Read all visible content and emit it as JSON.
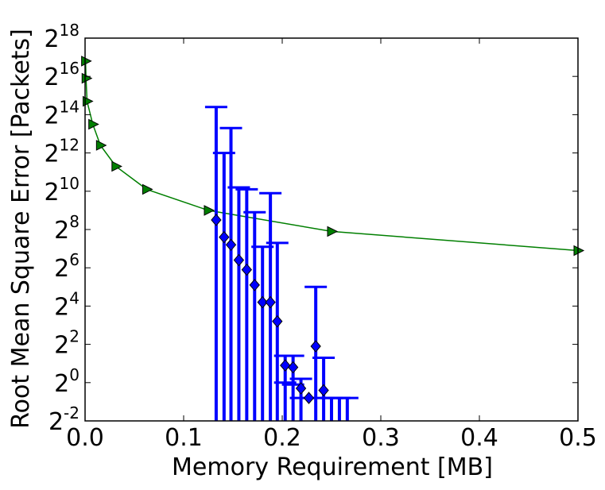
{
  "chart_data": {
    "type": "scatter",
    "title": "",
    "xlabel": "Memory Requirement [MB]",
    "ylabel": "Root Mean Square Error [Packets]",
    "xlim": [
      0.0,
      0.5
    ],
    "ylim_log2": [
      -2,
      18
    ],
    "yscale": "log2",
    "grid": false,
    "legend": "none",
    "x_ticks": [
      "0.0",
      "0.1",
      "0.2",
      "0.3",
      "0.4",
      "0.5"
    ],
    "y_ticks": [
      {
        "base": "2",
        "exp": "-2"
      },
      {
        "base": "2",
        "exp": "0"
      },
      {
        "base": "2",
        "exp": "2"
      },
      {
        "base": "2",
        "exp": "4"
      },
      {
        "base": "2",
        "exp": "6"
      },
      {
        "base": "2",
        "exp": "8"
      },
      {
        "base": "2",
        "exp": "10"
      },
      {
        "base": "2",
        "exp": "12"
      },
      {
        "base": "2",
        "exp": "14"
      },
      {
        "base": "2",
        "exp": "16"
      },
      {
        "base": "2",
        "exp": "18"
      }
    ],
    "series": [
      {
        "marker": "triangle-right",
        "color": "#007F00",
        "x": [
          0.0005,
          0.001,
          0.002,
          0.0078,
          0.0156,
          0.0313,
          0.0625,
          0.125,
          0.25,
          0.5
        ],
        "y_log2": [
          16.8,
          15.9,
          14.7,
          13.5,
          12.4,
          11.3,
          10.1,
          9.0,
          7.9,
          6.9
        ]
      },
      {
        "marker": "diamond",
        "color": "#0000FF",
        "x": [
          0.133,
          0.141,
          0.148,
          0.156,
          0.164,
          0.172,
          0.18,
          0.188,
          0.195,
          0.203,
          0.211,
          0.219,
          0.227,
          0.234,
          0.242,
          0.25,
          0.258,
          0.266
        ],
        "y_log2": [
          8.5,
          7.6,
          7.2,
          6.4,
          5.9,
          5.1,
          4.2,
          4.2,
          3.2,
          0.9,
          0.8,
          -0.3,
          -0.8,
          1.9,
          -0.4,
          null,
          null,
          null
        ],
        "err_upper_log2": [
          14.4,
          12.0,
          13.3,
          10.2,
          10.1,
          8.9,
          7.1,
          9.9,
          7.3,
          1.4,
          1.4,
          0.2,
          null,
          5.0,
          1.3,
          -0.8,
          -0.8,
          -0.8
        ],
        "err_lower_log2": [
          null,
          null,
          null,
          null,
          null,
          null,
          null,
          null,
          null,
          0.0,
          -0.1,
          -0.8,
          null,
          null,
          -0.8,
          null,
          null,
          null
        ]
      }
    ]
  }
}
